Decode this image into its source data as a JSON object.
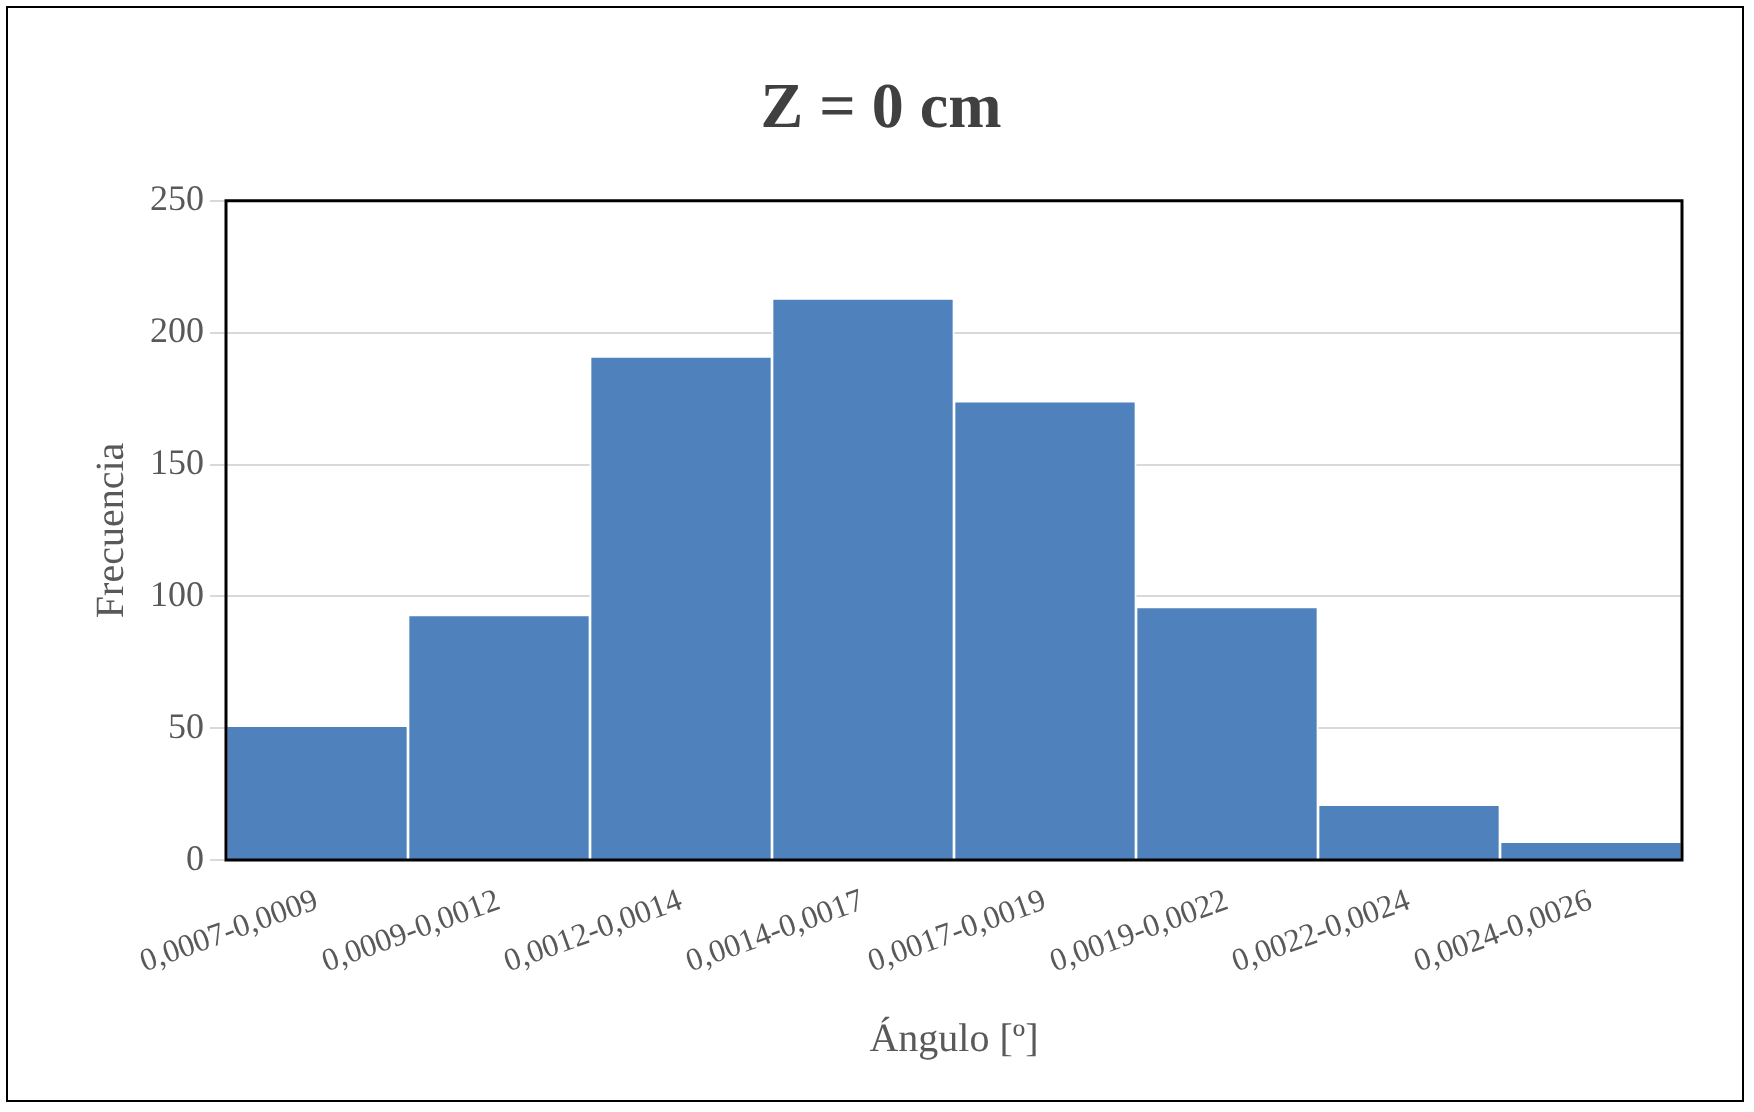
{
  "chart_data": {
    "type": "bar",
    "title": "Z = 0 cm",
    "xlabel": "Ángulo [º]",
    "ylabel": "Frecuencia",
    "categories": [
      "0,0007-0,0009",
      "0,0009-0,0012",
      "0,0012-0,0014",
      "0,0014-0,0017",
      "0,0017-0,0019",
      "0,0019-0,0022",
      "0,0022-0,0024",
      "0,0024-0,0026"
    ],
    "values": [
      51,
      93,
      191,
      213,
      174,
      96,
      21,
      7
    ],
    "color": "#4f81bd",
    "ylim": [
      0,
      250
    ],
    "yticks": [
      0,
      50,
      100,
      150,
      200,
      250
    ],
    "grid": "y"
  }
}
